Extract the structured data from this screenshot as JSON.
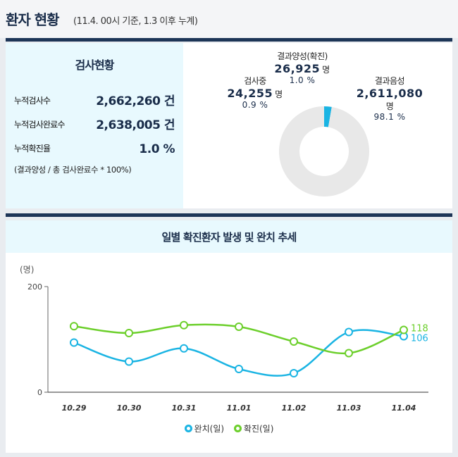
{
  "header": {
    "title": "환자 현황",
    "subtitle": "(11.4. 00시 기준, 1.3 이후 누계)"
  },
  "test_status": {
    "title": "검사현황",
    "rows": [
      {
        "label": "누적검사수",
        "value": "2,662,260 건"
      },
      {
        "label": "누적검사완료수",
        "value": "2,638,005 건"
      },
      {
        "label": "누적확진율",
        "value": "1.0 %"
      }
    ],
    "note": "(결과양성 / 총 검사완료수 * 100%)"
  },
  "donut": {
    "colors": {
      "positive": "#1ab4e3",
      "negative": "#e8e8e8",
      "pending": "#8c9ba4"
    },
    "segments": [
      {
        "key": "positive",
        "label": "결과양성(확진)",
        "count": "26,925",
        "unit": "명",
        "percent": "1.0 %",
        "share": 1.0
      },
      {
        "key": "negative",
        "label": "결과음성",
        "count": "2,611,080",
        "unit": "명",
        "percent": "98.1 %",
        "share": 98.1
      },
      {
        "key": "pending",
        "label": "검사중",
        "count": "24,255",
        "unit": "명",
        "percent": "0.9 %",
        "share": 0.9
      }
    ]
  },
  "chart_data": {
    "type": "line",
    "title": "일별 확진환자 발생 및 완치 추세",
    "ylabel": "(명)",
    "ylim": [
      0,
      200
    ],
    "yticks": [
      "0",
      "200"
    ],
    "categories": [
      "10.29",
      "10.30",
      "10.31",
      "11.01",
      "11.02",
      "11.03",
      "11.04"
    ],
    "series": [
      {
        "name": "완치(일)",
        "color": "#1ab4e3",
        "values": [
          94,
          58,
          83,
          44,
          36,
          114,
          106
        ],
        "end_label": "106"
      },
      {
        "name": "확진(일)",
        "color": "#6ccf2b",
        "values": [
          125,
          112,
          127,
          124,
          96,
          74,
          118
        ],
        "end_label": "118"
      }
    ],
    "grid": false,
    "legend_position": "bottom-center"
  }
}
